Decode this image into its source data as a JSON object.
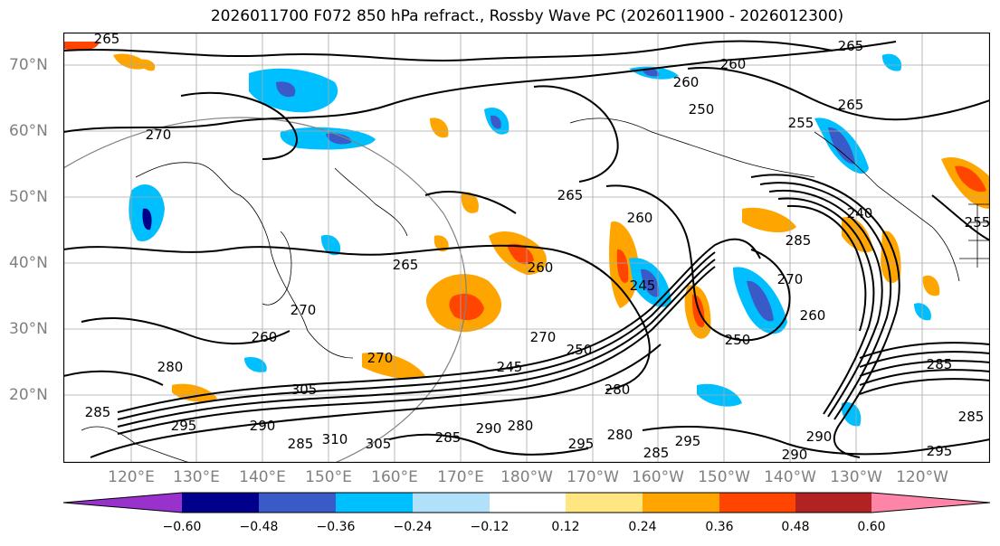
{
  "title": "2026011700 F072 850 hPa refract., Rossby Wave PC (2026011900 - 2026012300)",
  "lat_labels": [
    "70°N",
    "60°N",
    "50°N",
    "40°N",
    "30°N",
    "20°N"
  ],
  "lon_labels": [
    "120°E",
    "130°E",
    "140°E",
    "150°E",
    "160°E",
    "170°E",
    "180°W",
    "170°W",
    "160°W",
    "150°W",
    "140°W",
    "130°W",
    "120°W"
  ],
  "contour_labels": [
    "265",
    "260",
    "260",
    "250",
    "265",
    "270",
    "265",
    "255",
    "240",
    "255",
    "260",
    "265",
    "260",
    "245",
    "285",
    "270",
    "260",
    "270",
    "265",
    "260",
    "270",
    "250",
    "245",
    "270",
    "280",
    "305",
    "295",
    "290",
    "285",
    "310",
    "305",
    "290",
    "285",
    "280",
    "280",
    "295",
    "285",
    "295",
    "290",
    "290",
    "285",
    "295",
    "285",
    "250",
    "280",
    "285"
  ],
  "colorbar": {
    "colors": [
      "#9932cc",
      "#00008b",
      "#3a5bc7",
      "#00bfff",
      "#b0e0fa",
      "#ffffff",
      "#ffe680",
      "#ffa500",
      "#ff4500",
      "#b22222",
      "#ff85a8"
    ],
    "tick_labels": [
      "−0.60",
      "−0.48",
      "−0.36",
      "−0.24",
      "−0.12",
      "0.12",
      "0.24",
      "0.36",
      "0.48",
      "0.60"
    ]
  },
  "colors": {
    "gridline": "#a9a9a9",
    "contour": "#000000",
    "coast": "#000000",
    "axis_label": "#808080"
  }
}
